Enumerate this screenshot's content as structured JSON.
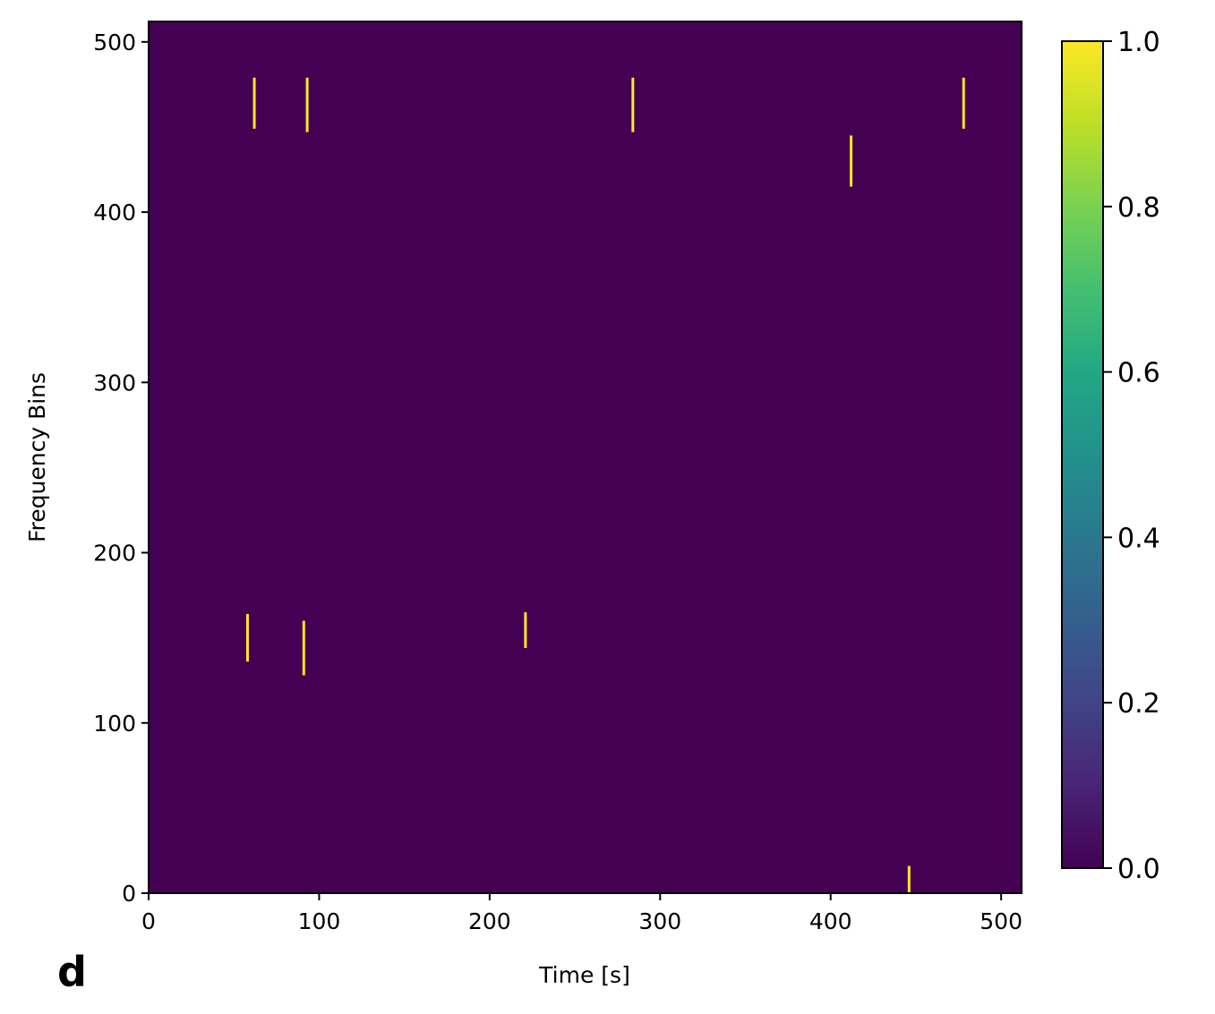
{
  "chart_data": {
    "type": "heatmap",
    "panel_label": "d",
    "xlabel": "Time [s]",
    "ylabel": "Frequency Bins",
    "xlim": [
      0,
      512
    ],
    "ylim": [
      0,
      512
    ],
    "x_ticks": [
      0,
      100,
      200,
      300,
      400,
      500
    ],
    "y_ticks": [
      0,
      100,
      200,
      300,
      400,
      500
    ],
    "colormap": "viridis",
    "colorbar": {
      "range": [
        0.0,
        1.0
      ],
      "ticks": [
        "0.0",
        "0.2",
        "0.4",
        "0.6",
        "0.8",
        "1.0"
      ]
    },
    "background_value": 0.0,
    "active_value": 1.0,
    "active_regions": [
      {
        "x": 62,
        "y0": 449,
        "y1": 479
      },
      {
        "x": 93,
        "y0": 447,
        "y1": 479
      },
      {
        "x": 284,
        "y0": 447,
        "y1": 479
      },
      {
        "x": 478,
        "y0": 449,
        "y1": 479
      },
      {
        "x": 412,
        "y0": 415,
        "y1": 445
      },
      {
        "x": 58,
        "y0": 136,
        "y1": 164
      },
      {
        "x": 91,
        "y0": 128,
        "y1": 160
      },
      {
        "x": 221,
        "y0": 144,
        "y1": 165
      },
      {
        "x": 446,
        "y0": 0,
        "y1": 16
      }
    ]
  }
}
